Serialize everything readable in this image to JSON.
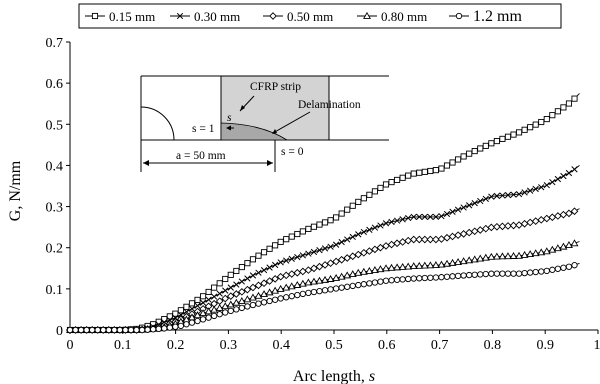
{
  "chart_data": {
    "type": "line",
    "xlabel": "Arc length, ",
    "xlabel_italic": "s",
    "ylabel": "G, N/mm",
    "xlim": [
      0,
      1
    ],
    "ylim": [
      0,
      0.7
    ],
    "x_ticks": [
      "0",
      "0.1",
      "0.2",
      "0.3",
      "0.4",
      "0.5",
      "0.6",
      "0.7",
      "0.8",
      "0.9",
      "1"
    ],
    "y_ticks": [
      "0",
      "0.1",
      "0.2",
      "0.3",
      "0.4",
      "0.5",
      "0.6",
      "0.7"
    ],
    "grid": false,
    "legend_position": "top",
    "series": [
      {
        "name": "0.15 mm",
        "marker": "square",
        "points": [
          [
            0,
            0
          ],
          [
            0.1,
            0
          ],
          [
            0.13,
            0.003
          ],
          [
            0.16,
            0.015
          ],
          [
            0.2,
            0.04
          ],
          [
            0.25,
            0.08
          ],
          [
            0.3,
            0.13
          ],
          [
            0.35,
            0.175
          ],
          [
            0.4,
            0.215
          ],
          [
            0.45,
            0.245
          ],
          [
            0.5,
            0.27
          ],
          [
            0.55,
            0.315
          ],
          [
            0.6,
            0.355
          ],
          [
            0.65,
            0.38
          ],
          [
            0.7,
            0.39
          ],
          [
            0.75,
            0.425
          ],
          [
            0.8,
            0.455
          ],
          [
            0.85,
            0.48
          ],
          [
            0.9,
            0.51
          ],
          [
            0.95,
            0.555
          ],
          [
            0.965,
            0.575
          ]
        ]
      },
      {
        "name": "0.30 mm",
        "marker": "x",
        "points": [
          [
            0,
            0
          ],
          [
            0.12,
            0
          ],
          [
            0.15,
            0.004
          ],
          [
            0.2,
            0.03
          ],
          [
            0.25,
            0.065
          ],
          [
            0.3,
            0.1
          ],
          [
            0.35,
            0.135
          ],
          [
            0.4,
            0.165
          ],
          [
            0.45,
            0.185
          ],
          [
            0.5,
            0.205
          ],
          [
            0.55,
            0.235
          ],
          [
            0.6,
            0.26
          ],
          [
            0.65,
            0.275
          ],
          [
            0.7,
            0.275
          ],
          [
            0.75,
            0.3
          ],
          [
            0.8,
            0.325
          ],
          [
            0.85,
            0.33
          ],
          [
            0.9,
            0.35
          ],
          [
            0.95,
            0.385
          ],
          [
            0.965,
            0.4
          ]
        ]
      },
      {
        "name": "0.50 mm",
        "marker": "diamond",
        "points": [
          [
            0,
            0
          ],
          [
            0.13,
            0
          ],
          [
            0.16,
            0.004
          ],
          [
            0.2,
            0.02
          ],
          [
            0.25,
            0.05
          ],
          [
            0.3,
            0.08
          ],
          [
            0.35,
            0.105
          ],
          [
            0.4,
            0.13
          ],
          [
            0.45,
            0.145
          ],
          [
            0.5,
            0.165
          ],
          [
            0.55,
            0.185
          ],
          [
            0.6,
            0.205
          ],
          [
            0.65,
            0.22
          ],
          [
            0.7,
            0.22
          ],
          [
            0.75,
            0.235
          ],
          [
            0.8,
            0.25
          ],
          [
            0.85,
            0.255
          ],
          [
            0.9,
            0.27
          ],
          [
            0.95,
            0.285
          ],
          [
            0.965,
            0.295
          ]
        ]
      },
      {
        "name": "0.80 mm",
        "marker": "triangle",
        "points": [
          [
            0,
            0
          ],
          [
            0.13,
            0
          ],
          [
            0.17,
            0.004
          ],
          [
            0.2,
            0.015
          ],
          [
            0.25,
            0.04
          ],
          [
            0.3,
            0.06
          ],
          [
            0.35,
            0.08
          ],
          [
            0.4,
            0.1
          ],
          [
            0.45,
            0.115
          ],
          [
            0.5,
            0.125
          ],
          [
            0.55,
            0.14
          ],
          [
            0.6,
            0.15
          ],
          [
            0.65,
            0.155
          ],
          [
            0.7,
            0.158
          ],
          [
            0.75,
            0.168
          ],
          [
            0.8,
            0.178
          ],
          [
            0.85,
            0.18
          ],
          [
            0.9,
            0.19
          ],
          [
            0.95,
            0.208
          ],
          [
            0.965,
            0.215
          ]
        ]
      },
      {
        "name": "1.2 mm",
        "marker": "circle",
        "points": [
          [
            0,
            0
          ],
          [
            0.14,
            0
          ],
          [
            0.18,
            0.004
          ],
          [
            0.21,
            0.01
          ],
          [
            0.25,
            0.025
          ],
          [
            0.3,
            0.045
          ],
          [
            0.35,
            0.062
          ],
          [
            0.4,
            0.077
          ],
          [
            0.45,
            0.09
          ],
          [
            0.5,
            0.1
          ],
          [
            0.55,
            0.11
          ],
          [
            0.6,
            0.12
          ],
          [
            0.65,
            0.125
          ],
          [
            0.7,
            0.128
          ],
          [
            0.75,
            0.133
          ],
          [
            0.8,
            0.137
          ],
          [
            0.85,
            0.137
          ],
          [
            0.9,
            0.143
          ],
          [
            0.95,
            0.155
          ],
          [
            0.965,
            0.162
          ]
        ]
      }
    ],
    "inset": {
      "strip_label": "CFRP strip",
      "delam_label": "Delamination",
      "s_label": "s",
      "s1_label": "s = 1",
      "s0_label": "s = 0",
      "a_label": "a = 50 mm",
      "strip_color": "#d3d3d3",
      "delam_color": "#a8a8a8"
    }
  }
}
